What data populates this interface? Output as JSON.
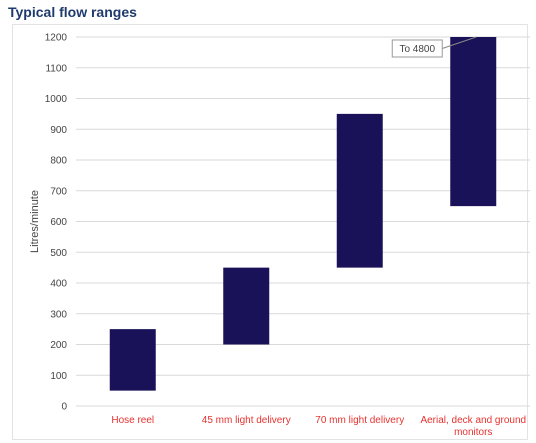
{
  "chart_data": {
    "type": "bar",
    "subtype": "floating-range",
    "title": "Typical flow ranges",
    "xlabel": "",
    "ylabel": "Litres/minute",
    "ylim": [
      0,
      1200
    ],
    "ytick_step": 100,
    "grid": true,
    "legend": "none",
    "bar_color": "#1a1259",
    "category_label_color": "#e8322f",
    "categories": [
      [
        "Hose reel"
      ],
      [
        "45 mm light delivery"
      ],
      [
        "70 mm light delivery"
      ],
      [
        "Aerial, deck and ground",
        "monitors"
      ]
    ],
    "ranges": [
      [
        50,
        250
      ],
      [
        200,
        450
      ],
      [
        450,
        950
      ],
      [
        650,
        1200
      ]
    ],
    "annotation": {
      "text": "To 4800",
      "category_index": 3,
      "value": 1200
    }
  }
}
